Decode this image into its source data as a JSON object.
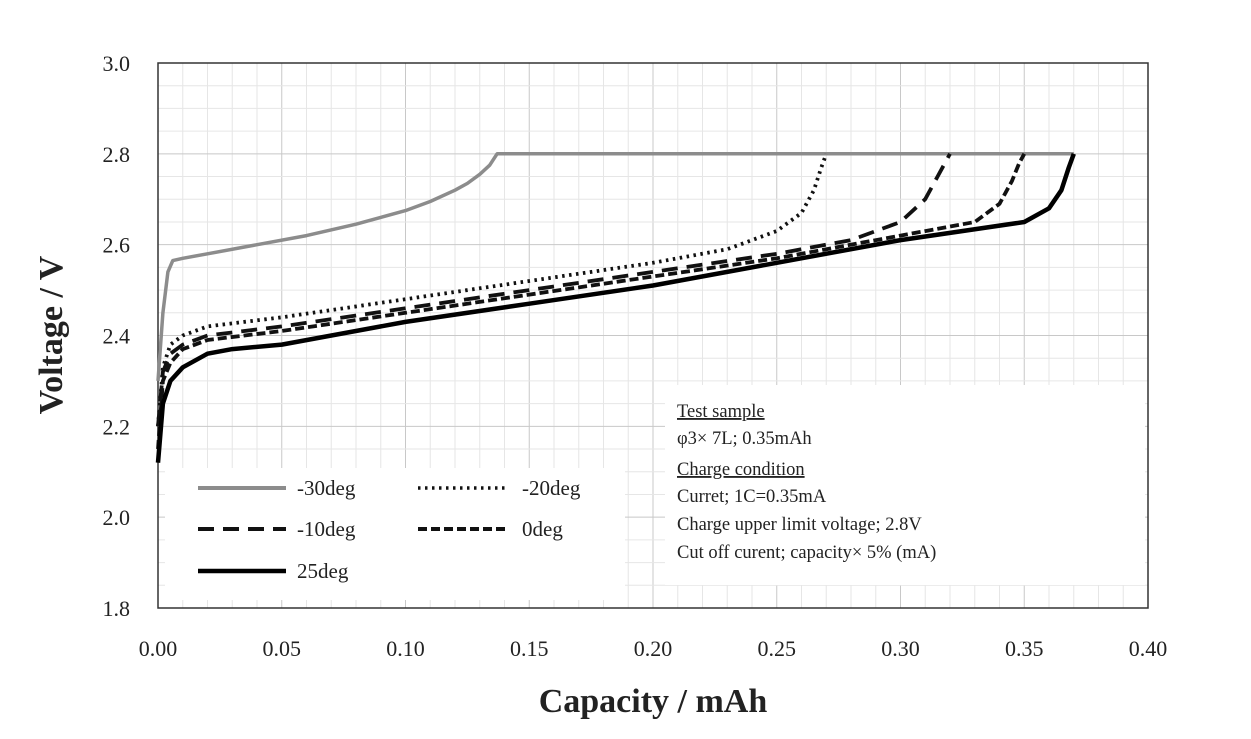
{
  "chart_data": {
    "type": "line",
    "title": "",
    "xlabel": "Capacity  / mAh",
    "ylabel": "Voltage / V",
    "xlim": [
      0.0,
      0.4
    ],
    "ylim": [
      1.8,
      3.0
    ],
    "grid": true,
    "legend_position": "bottom-left",
    "x_ticks": [
      "0.00",
      "0.05",
      "0.10",
      "0.15",
      "0.20",
      "0.25",
      "0.30",
      "0.35",
      "0.40"
    ],
    "y_ticks": [
      "1.8",
      "2.0",
      "2.2",
      "2.4",
      "2.6",
      "2.8",
      "3.0"
    ],
    "series": [
      {
        "name": "-30deg",
        "color": "#8c8c8c",
        "dash": "solid",
        "x": [
          0.0,
          0.002,
          0.004,
          0.006,
          0.01,
          0.02,
          0.04,
          0.06,
          0.08,
          0.1,
          0.11,
          0.12,
          0.125,
          0.13,
          0.134,
          0.137,
          0.15,
          0.2,
          0.25,
          0.3,
          0.35,
          0.37
        ],
        "y": [
          2.3,
          2.45,
          2.54,
          2.565,
          2.57,
          2.58,
          2.6,
          2.62,
          2.645,
          2.675,
          2.695,
          2.72,
          2.735,
          2.755,
          2.775,
          2.8,
          2.8,
          2.8,
          2.8,
          2.8,
          2.8,
          2.8
        ]
      },
      {
        "name": "-20deg",
        "color": "#111111",
        "dash": "dotted",
        "x": [
          0.0,
          0.002,
          0.005,
          0.01,
          0.02,
          0.05,
          0.1,
          0.15,
          0.2,
          0.23,
          0.25,
          0.26,
          0.265,
          0.268,
          0.27
        ],
        "y": [
          2.2,
          2.33,
          2.38,
          2.4,
          2.42,
          2.44,
          2.48,
          2.52,
          2.56,
          2.59,
          2.63,
          2.67,
          2.72,
          2.77,
          2.8
        ]
      },
      {
        "name": "-10deg",
        "color": "#111111",
        "dash": "dashed",
        "x": [
          0.0,
          0.002,
          0.005,
          0.01,
          0.02,
          0.05,
          0.1,
          0.15,
          0.2,
          0.25,
          0.28,
          0.3,
          0.31,
          0.315,
          0.318,
          0.32
        ],
        "y": [
          2.2,
          2.32,
          2.36,
          2.38,
          2.4,
          2.42,
          2.46,
          2.5,
          2.54,
          2.58,
          2.61,
          2.65,
          2.7,
          2.75,
          2.78,
          2.8
        ]
      },
      {
        "name": "0deg",
        "color": "#111111",
        "dash": "dashed-short",
        "x": [
          0.0,
          0.002,
          0.005,
          0.01,
          0.02,
          0.05,
          0.1,
          0.15,
          0.2,
          0.25,
          0.3,
          0.33,
          0.34,
          0.345,
          0.348,
          0.35
        ],
        "y": [
          2.15,
          2.3,
          2.34,
          2.37,
          2.39,
          2.41,
          2.45,
          2.49,
          2.53,
          2.57,
          2.62,
          2.65,
          2.69,
          2.74,
          2.78,
          2.8
        ]
      },
      {
        "name": "25deg",
        "color": "#000000",
        "dash": "solid",
        "x": [
          0.0,
          0.002,
          0.005,
          0.01,
          0.02,
          0.03,
          0.05,
          0.1,
          0.15,
          0.2,
          0.25,
          0.3,
          0.35,
          0.36,
          0.365,
          0.368,
          0.37
        ],
        "y": [
          2.12,
          2.25,
          2.3,
          2.33,
          2.36,
          2.37,
          2.38,
          2.43,
          2.47,
          2.51,
          2.56,
          2.61,
          2.65,
          2.68,
          2.72,
          2.77,
          2.8
        ]
      }
    ]
  },
  "info_box": {
    "heading1": "Test sample",
    "line1": "φ3× 7L; 0.35mAh",
    "heading2": "Charge condition",
    "line2": "Curret; 1C=0.35mA",
    "line3": "Charge upper limit  voltage; 2.8V",
    "line4": "Cut off curent; capacity× 5% (mA)"
  }
}
